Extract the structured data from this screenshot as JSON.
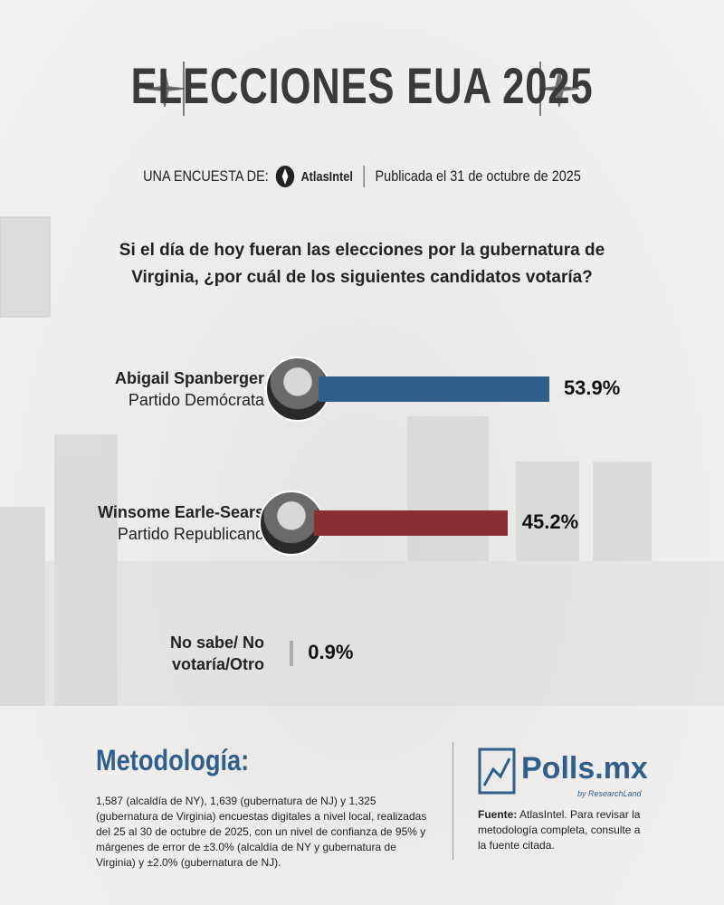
{
  "header": {
    "title": "ELECCIONES EUA 2025",
    "survey_prefix": "UNA ENCUESTA DE:",
    "pollster": "AtlasIntel",
    "published": "Publicada el 31 de octubre de 2025"
  },
  "chart_data": {
    "type": "bar",
    "orientation": "horizontal",
    "title": "Si el día de hoy fueran las elecciones por la gubernatura de Virginia, ¿por cuál de los siguientes candidatos votaría?",
    "categories": [
      "Abigail Spanberger",
      "Winsome Earle-Sears",
      "No sabe/ No votaría/Otro"
    ],
    "parties": [
      "Partido Demócrata",
      "Partido Republicano",
      null
    ],
    "values": [
      53.9,
      45.2,
      0.9
    ],
    "value_labels": [
      "53.9%",
      "45.2%",
      "0.9%"
    ],
    "colors": [
      "#2f5f8a",
      "#8a2f36",
      "#aaaaaa"
    ]
  },
  "footer": {
    "methodology_title": "Metodología:",
    "methodology_text": "1,587 (alcaldía de NY), 1,639 (gubernatura de NJ) y 1,325 (gubernatura de Virginia) encuestas digitales a nivel local, realizadas del 25 al 30 de octubre de 2025, con un nivel de confianza de 95% y márgenes de error de ±3.0% (alcaldía de NY y gubernatura de Virginia) y ±2.0% (gubernatura de NJ).",
    "brand": "Polls.mx",
    "brand_sub": "by ResearchLand",
    "source_label": "Fuente:",
    "source_text": "AtlasIntel. Para revisar la metodología completa, consulte a la fuente citada."
  }
}
